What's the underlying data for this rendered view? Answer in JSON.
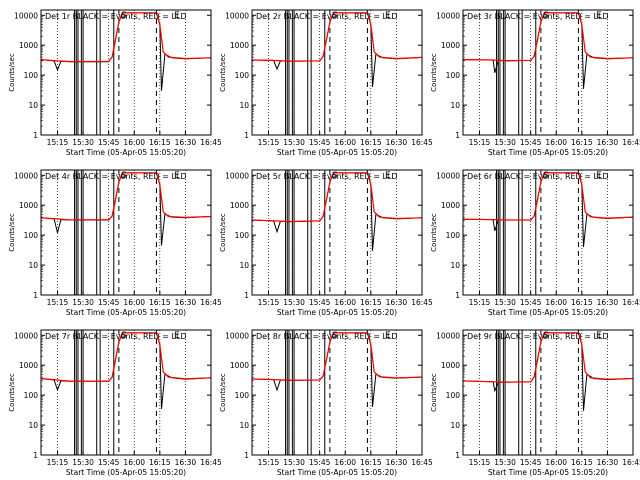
{
  "figure": {
    "xlabel": "Start Time (05-Apr-05 15:05:20)",
    "ylabel": "Counts/sec",
    "x_ticks": [
      "15:15",
      "15:30",
      "15:45",
      "16:00",
      "16:15",
      "16:30",
      "16:45"
    ],
    "y_ticks": [
      "1",
      "10",
      "100",
      "1000",
      "10000"
    ],
    "markers": {
      "S": "S",
      "E": "E"
    },
    "colors": {
      "events": "#000000",
      "lld": "#ff0000",
      "background": "#ffffff"
    }
  },
  "chart_data": [
    {
      "type": "line",
      "title": "Det 1r BLACK = Events, RED = LLD",
      "ylog": true,
      "ylim": [
        1,
        15000
      ],
      "x_start": "15:05:20",
      "x_end": "16:45",
      "vlines_solid": [
        "15:25",
        "15:26",
        "15:27",
        "15:29",
        "15:30",
        "15:38",
        "15:40",
        "15:48"
      ],
      "vlines_dashed": [
        "15:51",
        "16:13"
      ],
      "vlines_dotted": [
        "15:15",
        "15:30",
        "15:45",
        "16:00",
        "16:15",
        "16:30",
        "16:45"
      ],
      "markers": {
        "S": "15:54",
        "E": "16:25"
      },
      "series": [
        {
          "name": "BLACK = Events",
          "x": [
            "15:05:20",
            "15:13",
            "15:15",
            "15:17",
            "15:22",
            "15:45",
            "15:47",
            "15:49",
            "15:51",
            "15:53",
            "16:13",
            "16:15",
            "16:16",
            "16:18",
            "16:22",
            "16:30",
            "16:45"
          ],
          "y": [
            330,
            300,
            150,
            290,
            280,
            280,
            400,
            1500,
            6000,
            12000,
            12000,
            5000,
            30,
            500,
            380,
            350,
            380
          ]
        },
        {
          "name": "RED = LLD",
          "x": [
            "15:05:20",
            "15:15",
            "15:22",
            "15:45",
            "15:47",
            "15:49",
            "15:51",
            "15:53",
            "16:13",
            "16:15",
            "16:17",
            "16:20",
            "16:30",
            "16:45"
          ],
          "y": [
            330,
            300,
            285,
            290,
            400,
            1500,
            6000,
            12000,
            12000,
            5000,
            600,
            400,
            360,
            380
          ]
        }
      ]
    },
    {
      "type": "line",
      "title": "Det 2r BLACK = Events, RED = LLD",
      "ylog": true,
      "ylim": [
        1,
        15000
      ],
      "x_start": "15:05:20",
      "x_end": "16:45",
      "vlines_solid": [
        "15:25",
        "15:26",
        "15:27",
        "15:29",
        "15:30",
        "15:38",
        "15:40",
        "15:48"
      ],
      "vlines_dashed": [
        "15:51",
        "16:13"
      ],
      "vlines_dotted": [
        "15:15",
        "15:30",
        "15:45",
        "16:00",
        "16:15",
        "16:30",
        "16:45"
      ],
      "markers": {
        "S": "15:54",
        "E": "16:25"
      },
      "series": [
        {
          "name": "BLACK = Events",
          "x": [
            "15:05:20",
            "15:18",
            "15:20",
            "15:22",
            "15:27",
            "15:45",
            "15:47",
            "15:49",
            "15:51",
            "15:53",
            "16:13",
            "16:15",
            "16:16",
            "16:18",
            "16:22",
            "16:30",
            "16:45"
          ],
          "y": [
            320,
            310,
            160,
            300,
            290,
            300,
            420,
            1500,
            6000,
            12000,
            12000,
            5000,
            40,
            500,
            380,
            350,
            390
          ]
        },
        {
          "name": "RED = LLD",
          "x": [
            "15:05:20",
            "15:18",
            "15:27",
            "15:45",
            "15:47",
            "15:49",
            "15:51",
            "15:53",
            "16:13",
            "16:15",
            "16:17",
            "16:20",
            "16:30",
            "16:45"
          ],
          "y": [
            320,
            310,
            295,
            300,
            420,
            1500,
            6000,
            12000,
            12000,
            5000,
            600,
            400,
            360,
            390
          ]
        }
      ]
    },
    {
      "type": "line",
      "title": "Det 3r BLACK = Events, RED = LLD",
      "ylog": true,
      "ylim": [
        1,
        15000
      ],
      "x_start": "15:05:20",
      "x_end": "16:45",
      "vlines_solid": [
        "15:25",
        "15:26",
        "15:27",
        "15:29",
        "15:30",
        "15:38",
        "15:40",
        "15:48"
      ],
      "vlines_dashed": [
        "15:51",
        "16:13"
      ],
      "vlines_dotted": [
        "15:15",
        "15:30",
        "15:45",
        "16:00",
        "16:15",
        "16:30",
        "16:45"
      ],
      "markers": {
        "S": "15:54",
        "E": "16:25"
      },
      "series": [
        {
          "name": "BLACK = Events",
          "x": [
            "15:05:20",
            "15:23",
            "15:24",
            "15:26",
            "15:30",
            "15:45",
            "15:47",
            "15:49",
            "15:51",
            "15:53",
            "16:13",
            "16:15",
            "16:16",
            "16:18",
            "16:22",
            "16:30",
            "16:45"
          ],
          "y": [
            330,
            320,
            120,
            310,
            300,
            310,
            420,
            1500,
            6000,
            12000,
            12000,
            5000,
            35,
            500,
            380,
            350,
            380
          ]
        },
        {
          "name": "RED = LLD",
          "x": [
            "15:05:20",
            "15:23",
            "15:30",
            "15:45",
            "15:47",
            "15:49",
            "15:51",
            "15:53",
            "16:13",
            "16:15",
            "16:17",
            "16:20",
            "16:30",
            "16:45"
          ],
          "y": [
            330,
            320,
            305,
            310,
            420,
            1500,
            6000,
            12000,
            12000,
            5000,
            600,
            400,
            360,
            380
          ]
        }
      ]
    },
    {
      "type": "line",
      "title": "Det 4r BLACK = Events, RED = LLD",
      "ylog": true,
      "ylim": [
        1,
        15000
      ],
      "x_start": "15:05:20",
      "x_end": "16:45",
      "vlines_solid": [
        "15:25",
        "15:26",
        "15:27",
        "15:29",
        "15:30",
        "15:38",
        "15:40",
        "15:48"
      ],
      "vlines_dashed": [
        "15:51",
        "16:13"
      ],
      "vlines_dotted": [
        "15:15",
        "15:30",
        "15:45",
        "16:00",
        "16:15",
        "16:30",
        "16:45"
      ],
      "markers": {
        "S": "15:54",
        "E": "16:25"
      },
      "series": [
        {
          "name": "BLACK = Events",
          "x": [
            "15:05:20",
            "15:13",
            "15:15",
            "15:17",
            "15:22",
            "15:45",
            "15:47",
            "15:49",
            "15:51",
            "15:53",
            "16:13",
            "16:15",
            "16:16",
            "16:18",
            "16:22",
            "16:30",
            "16:45"
          ],
          "y": [
            380,
            350,
            120,
            330,
            320,
            320,
            430,
            1500,
            6000,
            12000,
            12000,
            5000,
            45,
            500,
            400,
            380,
            420
          ]
        },
        {
          "name": "RED = LLD",
          "x": [
            "15:05:20",
            "15:15",
            "15:22",
            "15:45",
            "15:47",
            "15:49",
            "15:51",
            "15:53",
            "16:13",
            "16:15",
            "16:17",
            "16:20",
            "16:30",
            "16:45"
          ],
          "y": [
            380,
            350,
            325,
            330,
            430,
            1500,
            6000,
            12000,
            12000,
            5000,
            600,
            420,
            390,
            420
          ]
        }
      ]
    },
    {
      "type": "line",
      "title": "Det 5r BLACK = Events, RED = LLD",
      "ylog": true,
      "ylim": [
        1,
        15000
      ],
      "x_start": "15:05:20",
      "x_end": "16:45",
      "vlines_solid": [
        "15:25",
        "15:26",
        "15:27",
        "15:29",
        "15:30",
        "15:38",
        "15:40",
        "15:48"
      ],
      "vlines_dashed": [
        "15:51",
        "16:13"
      ],
      "vlines_dotted": [
        "15:15",
        "15:30",
        "15:45",
        "16:00",
        "16:15",
        "16:30",
        "16:45"
      ],
      "markers": {
        "S": "15:54",
        "E": "16:25"
      },
      "series": [
        {
          "name": "BLACK = Events",
          "x": [
            "15:05:20",
            "15:18",
            "15:20",
            "15:22",
            "15:27",
            "15:45",
            "15:47",
            "15:49",
            "15:51",
            "15:53",
            "16:13",
            "16:15",
            "16:16",
            "16:18",
            "16:22",
            "16:30",
            "16:45"
          ],
          "y": [
            320,
            300,
            130,
            290,
            280,
            300,
            420,
            1500,
            6000,
            12000,
            12000,
            5000,
            30,
            500,
            380,
            350,
            380
          ]
        },
        {
          "name": "RED = LLD",
          "x": [
            "15:05:20",
            "15:18",
            "15:27",
            "15:45",
            "15:47",
            "15:49",
            "15:51",
            "15:53",
            "16:13",
            "16:15",
            "16:17",
            "16:20",
            "16:30",
            "16:45"
          ],
          "y": [
            320,
            300,
            285,
            300,
            420,
            1500,
            6000,
            12000,
            12000,
            5000,
            600,
            400,
            360,
            380
          ]
        }
      ]
    },
    {
      "type": "line",
      "title": "Det 6r BLACK = Events, RED = LLD",
      "ylog": true,
      "ylim": [
        1,
        15000
      ],
      "x_start": "15:05:20",
      "x_end": "16:45",
      "vlines_solid": [
        "15:25",
        "15:26",
        "15:27",
        "15:29",
        "15:30",
        "15:38",
        "15:40",
        "15:48"
      ],
      "vlines_dashed": [
        "15:51",
        "16:13"
      ],
      "vlines_dotted": [
        "15:15",
        "15:30",
        "15:45",
        "16:00",
        "16:15",
        "16:30",
        "16:45"
      ],
      "markers": {
        "S": "15:54",
        "E": "16:25"
      },
      "series": [
        {
          "name": "BLACK = Events",
          "x": [
            "15:05:20",
            "15:23",
            "15:24",
            "15:26",
            "15:30",
            "15:45",
            "15:47",
            "15:49",
            "15:51",
            "15:53",
            "16:13",
            "16:15",
            "16:16",
            "16:18",
            "16:22",
            "16:30",
            "16:45"
          ],
          "y": [
            340,
            330,
            140,
            320,
            320,
            320,
            430,
            1500,
            6000,
            12000,
            12000,
            5000,
            40,
            500,
            390,
            360,
            400
          ]
        },
        {
          "name": "RED = LLD",
          "x": [
            "15:05:20",
            "15:23",
            "15:30",
            "15:45",
            "15:47",
            "15:49",
            "15:51",
            "15:53",
            "16:13",
            "16:15",
            "16:17",
            "16:20",
            "16:30",
            "16:45"
          ],
          "y": [
            340,
            330,
            320,
            320,
            430,
            1500,
            6000,
            12000,
            12000,
            5000,
            600,
            410,
            370,
            400
          ]
        }
      ]
    },
    {
      "type": "line",
      "title": "Det 7r BLACK = Events, RED = LLD",
      "ylog": true,
      "ylim": [
        1,
        15000
      ],
      "x_start": "15:05:20",
      "x_end": "16:45",
      "vlines_solid": [
        "15:25",
        "15:26",
        "15:27",
        "15:29",
        "15:30",
        "15:38",
        "15:40",
        "15:48"
      ],
      "vlines_dashed": [
        "15:51",
        "16:13"
      ],
      "vlines_dotted": [
        "15:15",
        "15:30",
        "15:45",
        "16:00",
        "16:15",
        "16:30",
        "16:45"
      ],
      "markers": {
        "S": "15:54",
        "E": "16:25"
      },
      "series": [
        {
          "name": "BLACK = Events",
          "x": [
            "15:05:20",
            "15:13",
            "15:15",
            "15:17",
            "15:22",
            "15:45",
            "15:47",
            "15:49",
            "15:51",
            "15:53",
            "16:13",
            "16:15",
            "16:16",
            "16:18",
            "16:22",
            "16:30",
            "16:45"
          ],
          "y": [
            360,
            320,
            150,
            300,
            290,
            290,
            400,
            1500,
            6000,
            12000,
            12000,
            5000,
            35,
            500,
            380,
            340,
            380
          ]
        },
        {
          "name": "RED = LLD",
          "x": [
            "15:05:20",
            "15:15",
            "15:22",
            "15:45",
            "15:47",
            "15:49",
            "15:51",
            "15:53",
            "16:13",
            "16:15",
            "16:17",
            "16:20",
            "16:30",
            "16:45"
          ],
          "y": [
            360,
            320,
            295,
            295,
            400,
            1500,
            6000,
            12000,
            12000,
            5000,
            600,
            400,
            350,
            380
          ]
        }
      ]
    },
    {
      "type": "line",
      "title": "Det 8r BLACK = Events, RED = LLD",
      "ylog": true,
      "ylim": [
        1,
        15000
      ],
      "x_start": "15:05:20",
      "x_end": "16:45",
      "vlines_solid": [
        "15:25",
        "15:26",
        "15:27",
        "15:29",
        "15:30",
        "15:38",
        "15:40",
        "15:48"
      ],
      "vlines_dashed": [
        "15:51",
        "16:13"
      ],
      "vlines_dotted": [
        "15:15",
        "15:30",
        "15:45",
        "16:00",
        "16:15",
        "16:30",
        "16:45"
      ],
      "markers": {
        "S": "15:54",
        "E": "16:25"
      },
      "series": [
        {
          "name": "BLACK = Events",
          "x": [
            "15:05:20",
            "15:18",
            "15:20",
            "15:22",
            "15:27",
            "15:45",
            "15:47",
            "15:49",
            "15:51",
            "15:53",
            "16:13",
            "16:15",
            "16:16",
            "16:18",
            "16:22",
            "16:30",
            "16:45"
          ],
          "y": [
            350,
            330,
            150,
            320,
            310,
            320,
            430,
            1500,
            6000,
            12000,
            12000,
            5000,
            40,
            500,
            390,
            370,
            400
          ]
        },
        {
          "name": "RED = LLD",
          "x": [
            "15:05:20",
            "15:18",
            "15:27",
            "15:45",
            "15:47",
            "15:49",
            "15:51",
            "15:53",
            "16:13",
            "16:15",
            "16:17",
            "16:20",
            "16:30",
            "16:45"
          ],
          "y": [
            350,
            330,
            315,
            320,
            430,
            1500,
            6000,
            12000,
            12000,
            5000,
            600,
            410,
            380,
            400
          ]
        }
      ]
    },
    {
      "type": "line",
      "title": "Det 9r BLACK = Events, RED = LLD",
      "ylog": true,
      "ylim": [
        1,
        15000
      ],
      "x_start": "15:05:20",
      "x_end": "16:45",
      "vlines_solid": [
        "15:25",
        "15:26",
        "15:27",
        "15:29",
        "15:30",
        "15:38",
        "15:40",
        "15:48"
      ],
      "vlines_dashed": [
        "15:51",
        "16:13"
      ],
      "vlines_dotted": [
        "15:15",
        "15:30",
        "15:45",
        "16:00",
        "16:15",
        "16:30",
        "16:45"
      ],
      "markers": {
        "S": "15:54",
        "E": "16:25"
      },
      "series": [
        {
          "name": "BLACK = Events",
          "x": [
            "15:05:20",
            "15:23",
            "15:24",
            "15:26",
            "15:30",
            "15:45",
            "15:47",
            "15:49",
            "15:51",
            "15:53",
            "16:13",
            "16:15",
            "16:16",
            "16:18",
            "16:22",
            "16:30",
            "16:45"
          ],
          "y": [
            300,
            280,
            140,
            270,
            270,
            280,
            400,
            1500,
            6000,
            12000,
            12000,
            5000,
            30,
            500,
            360,
            330,
            360
          ]
        },
        {
          "name": "RED = LLD",
          "x": [
            "15:05:20",
            "15:23",
            "15:30",
            "15:45",
            "15:47",
            "15:49",
            "15:51",
            "15:53",
            "16:13",
            "16:15",
            "16:17",
            "16:20",
            "16:30",
            "16:45"
          ],
          "y": [
            300,
            280,
            270,
            280,
            400,
            1500,
            6000,
            12000,
            12000,
            5000,
            600,
            380,
            340,
            360
          ]
        }
      ]
    }
  ]
}
